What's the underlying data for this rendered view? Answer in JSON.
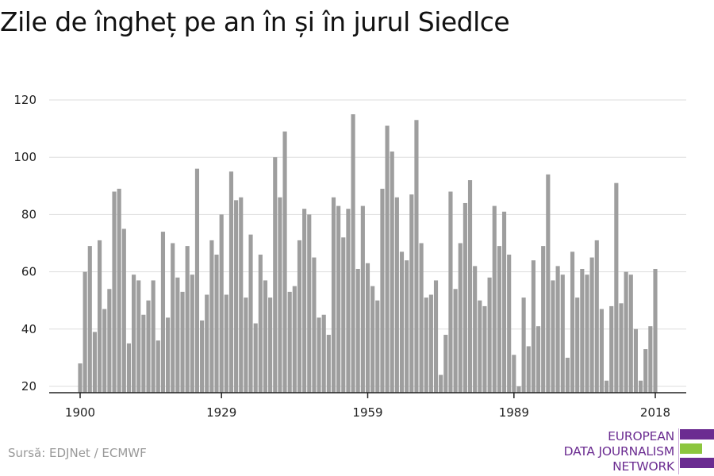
{
  "title": "Zile de îngheț pe an în și în jurul Siedlce",
  "source": "Sursă: EDJNet / ECMWF",
  "logo": {
    "lines": [
      "EUROPEAN",
      "DATA JOURNALISM",
      "NETWORK"
    ],
    "colors": {
      "purple": "#6b2c91",
      "green": "#8cc63e"
    }
  },
  "colors": {
    "bar": "#9e9e9e",
    "grid": "#dddddd",
    "axis": "#222222",
    "text": "#222222"
  },
  "chart_data": {
    "type": "bar",
    "title": "Zile de îngheț pe an în și în jurul Siedlce",
    "xlabel": "",
    "ylabel": "",
    "ylim": [
      17,
      122
    ],
    "xlim": [
      1900,
      2018
    ],
    "yticks": [
      20,
      40,
      60,
      80,
      100,
      120
    ],
    "xticks": [
      1900,
      1929,
      1959,
      1989,
      2018
    ],
    "grid": true,
    "legend": "none",
    "categories": [
      1900,
      1901,
      1902,
      1903,
      1904,
      1905,
      1906,
      1907,
      1908,
      1909,
      1910,
      1911,
      1912,
      1913,
      1914,
      1915,
      1916,
      1917,
      1918,
      1919,
      1920,
      1921,
      1922,
      1923,
      1924,
      1925,
      1926,
      1927,
      1928,
      1929,
      1930,
      1931,
      1932,
      1933,
      1934,
      1935,
      1936,
      1937,
      1938,
      1939,
      1940,
      1941,
      1942,
      1943,
      1944,
      1945,
      1946,
      1947,
      1948,
      1949,
      1950,
      1951,
      1952,
      1953,
      1954,
      1955,
      1956,
      1957,
      1958,
      1959,
      1960,
      1961,
      1962,
      1963,
      1964,
      1965,
      1966,
      1967,
      1968,
      1969,
      1970,
      1971,
      1972,
      1973,
      1974,
      1975,
      1976,
      1977,
      1978,
      1979,
      1980,
      1981,
      1982,
      1983,
      1984,
      1985,
      1986,
      1987,
      1988,
      1989,
      1990,
      1991,
      1992,
      1993,
      1994,
      1995,
      1996,
      1997,
      1998,
      1999,
      2000,
      2001,
      2002,
      2003,
      2004,
      2005,
      2006,
      2007,
      2008,
      2009,
      2010,
      2011,
      2012,
      2013,
      2014,
      2015,
      2016,
      2017,
      2018
    ],
    "values": [
      28,
      60,
      69,
      39,
      71,
      47,
      54,
      88,
      89,
      75,
      35,
      59,
      57,
      45,
      50,
      57,
      36,
      74,
      44,
      70,
      58,
      53,
      69,
      59,
      96,
      43,
      52,
      71,
      66,
      80,
      52,
      95,
      85,
      86,
      51,
      73,
      42,
      66,
      57,
      51,
      100,
      86,
      109,
      53,
      55,
      71,
      82,
      80,
      65,
      44,
      45,
      38,
      86,
      83,
      72,
      82,
      115,
      61,
      83,
      63,
      55,
      50,
      89,
      111,
      102,
      86,
      67,
      64,
      87,
      113,
      70,
      51,
      52,
      57,
      24,
      38,
      88,
      54,
      70,
      84,
      92,
      62,
      50,
      48,
      58,
      83,
      69,
      81,
      66,
      31,
      20,
      51,
      34,
      64,
      41,
      69,
      94,
      57,
      62,
      59,
      30,
      67,
      51,
      61,
      59,
      65,
      71,
      47,
      22,
      48,
      91,
      49,
      60,
      59,
      40,
      22,
      33,
      41,
      61
    ]
  }
}
